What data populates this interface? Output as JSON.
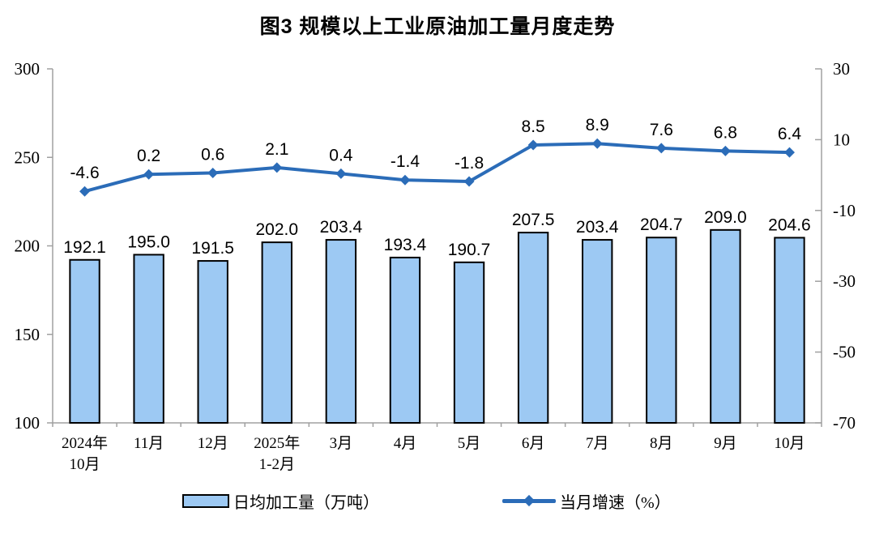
{
  "title": "图3 规模以上工业原油加工量月度走势",
  "legend": {
    "bar_label": "日均加工量（万吨）",
    "line_label": "当月增速（%）"
  },
  "colors": {
    "bar_fill": "#9DC9F3",
    "bar_border": "#000000",
    "line": "#2B6CB8",
    "axis": "#A0A0A0",
    "text": "#000000"
  },
  "chart_data": {
    "type": "combo",
    "title": "图3 规模以上工业原油加工量月度走势",
    "categories": [
      "2024年\n10月",
      "11月",
      "12月",
      "2025年\n1-2月",
      "3月",
      "4月",
      "5月",
      "6月",
      "7月",
      "8月",
      "9月",
      "10月"
    ],
    "series": [
      {
        "name": "日均加工量（万吨）",
        "type": "bar",
        "axis": "left",
        "values": [
          192.1,
          195.0,
          191.5,
          202.0,
          203.4,
          193.4,
          190.7,
          207.5,
          203.4,
          204.7,
          209.0,
          204.6
        ]
      },
      {
        "name": "当月增速（%）",
        "type": "line",
        "axis": "right",
        "values": [
          -4.6,
          0.2,
          0.6,
          2.1,
          0.4,
          -1.4,
          -1.8,
          8.5,
          8.9,
          7.6,
          6.8,
          6.4
        ]
      }
    ],
    "left_axis": {
      "min": 100,
      "max": 300,
      "ticks": [
        300,
        250,
        200,
        150,
        100
      ]
    },
    "right_axis": {
      "min": -70,
      "max": 30,
      "ticks": [
        30,
        10,
        -10,
        -30,
        -50,
        -70
      ]
    },
    "grid": false,
    "legend_position": "bottom"
  }
}
